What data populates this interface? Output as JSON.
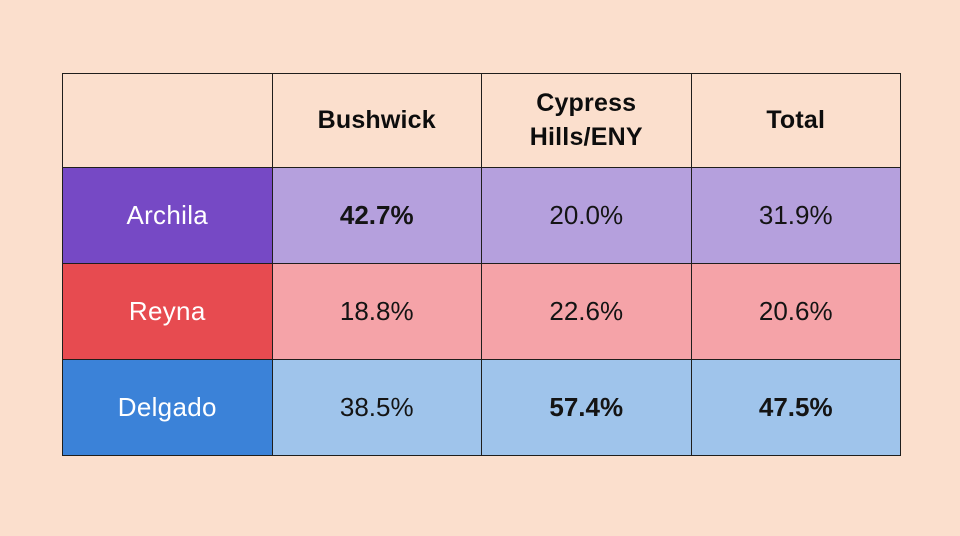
{
  "page": {
    "background_color": "#fbdfcd",
    "border_color": "#1f1e1c"
  },
  "table": {
    "headers": [
      "",
      "Bushwick",
      "Cypress Hills/ENY",
      "Total"
    ],
    "rows": [
      {
        "label": "Archila",
        "color": "#7649c5",
        "tint_color": "#b5a0dd",
        "values": [
          "42.7%",
          "20.0%",
          "31.9%"
        ],
        "bold_flags": [
          true,
          false,
          false
        ]
      },
      {
        "label": "Reyna",
        "color": "#e74b50",
        "tint_color": "#f5a3a8",
        "values": [
          "18.8%",
          "22.6%",
          "20.6%"
        ],
        "bold_flags": [
          false,
          false,
          false
        ]
      },
      {
        "label": "Delgado",
        "color": "#3b82d8",
        "tint_color": "#9fc4eb",
        "values": [
          "38.5%",
          "57.4%",
          "47.5%"
        ],
        "bold_flags": [
          false,
          true,
          true
        ]
      }
    ]
  },
  "chart_data": {
    "type": "table",
    "title": "",
    "columns": [
      "Bushwick",
      "Cypress Hills/ENY",
      "Total"
    ],
    "row_labels": [
      "Archila",
      "Reyna",
      "Delgado"
    ],
    "values_percent": [
      [
        42.7,
        20.0,
        31.9
      ],
      [
        18.8,
        22.6,
        20.6
      ],
      [
        38.5,
        57.4,
        47.5
      ]
    ],
    "highlighted_cells": [
      {
        "row": "Archila",
        "column": "Bushwick",
        "value": 42.7
      },
      {
        "row": "Delgado",
        "column": "Cypress Hills/ENY",
        "value": 57.4
      },
      {
        "row": "Delgado",
        "column": "Total",
        "value": 47.5
      }
    ],
    "row_colors": [
      "#7649c5",
      "#e74b50",
      "#3b82d8"
    ],
    "row_tint_colors": [
      "#b5a0dd",
      "#f5a3a8",
      "#9fc4eb"
    ]
  }
}
